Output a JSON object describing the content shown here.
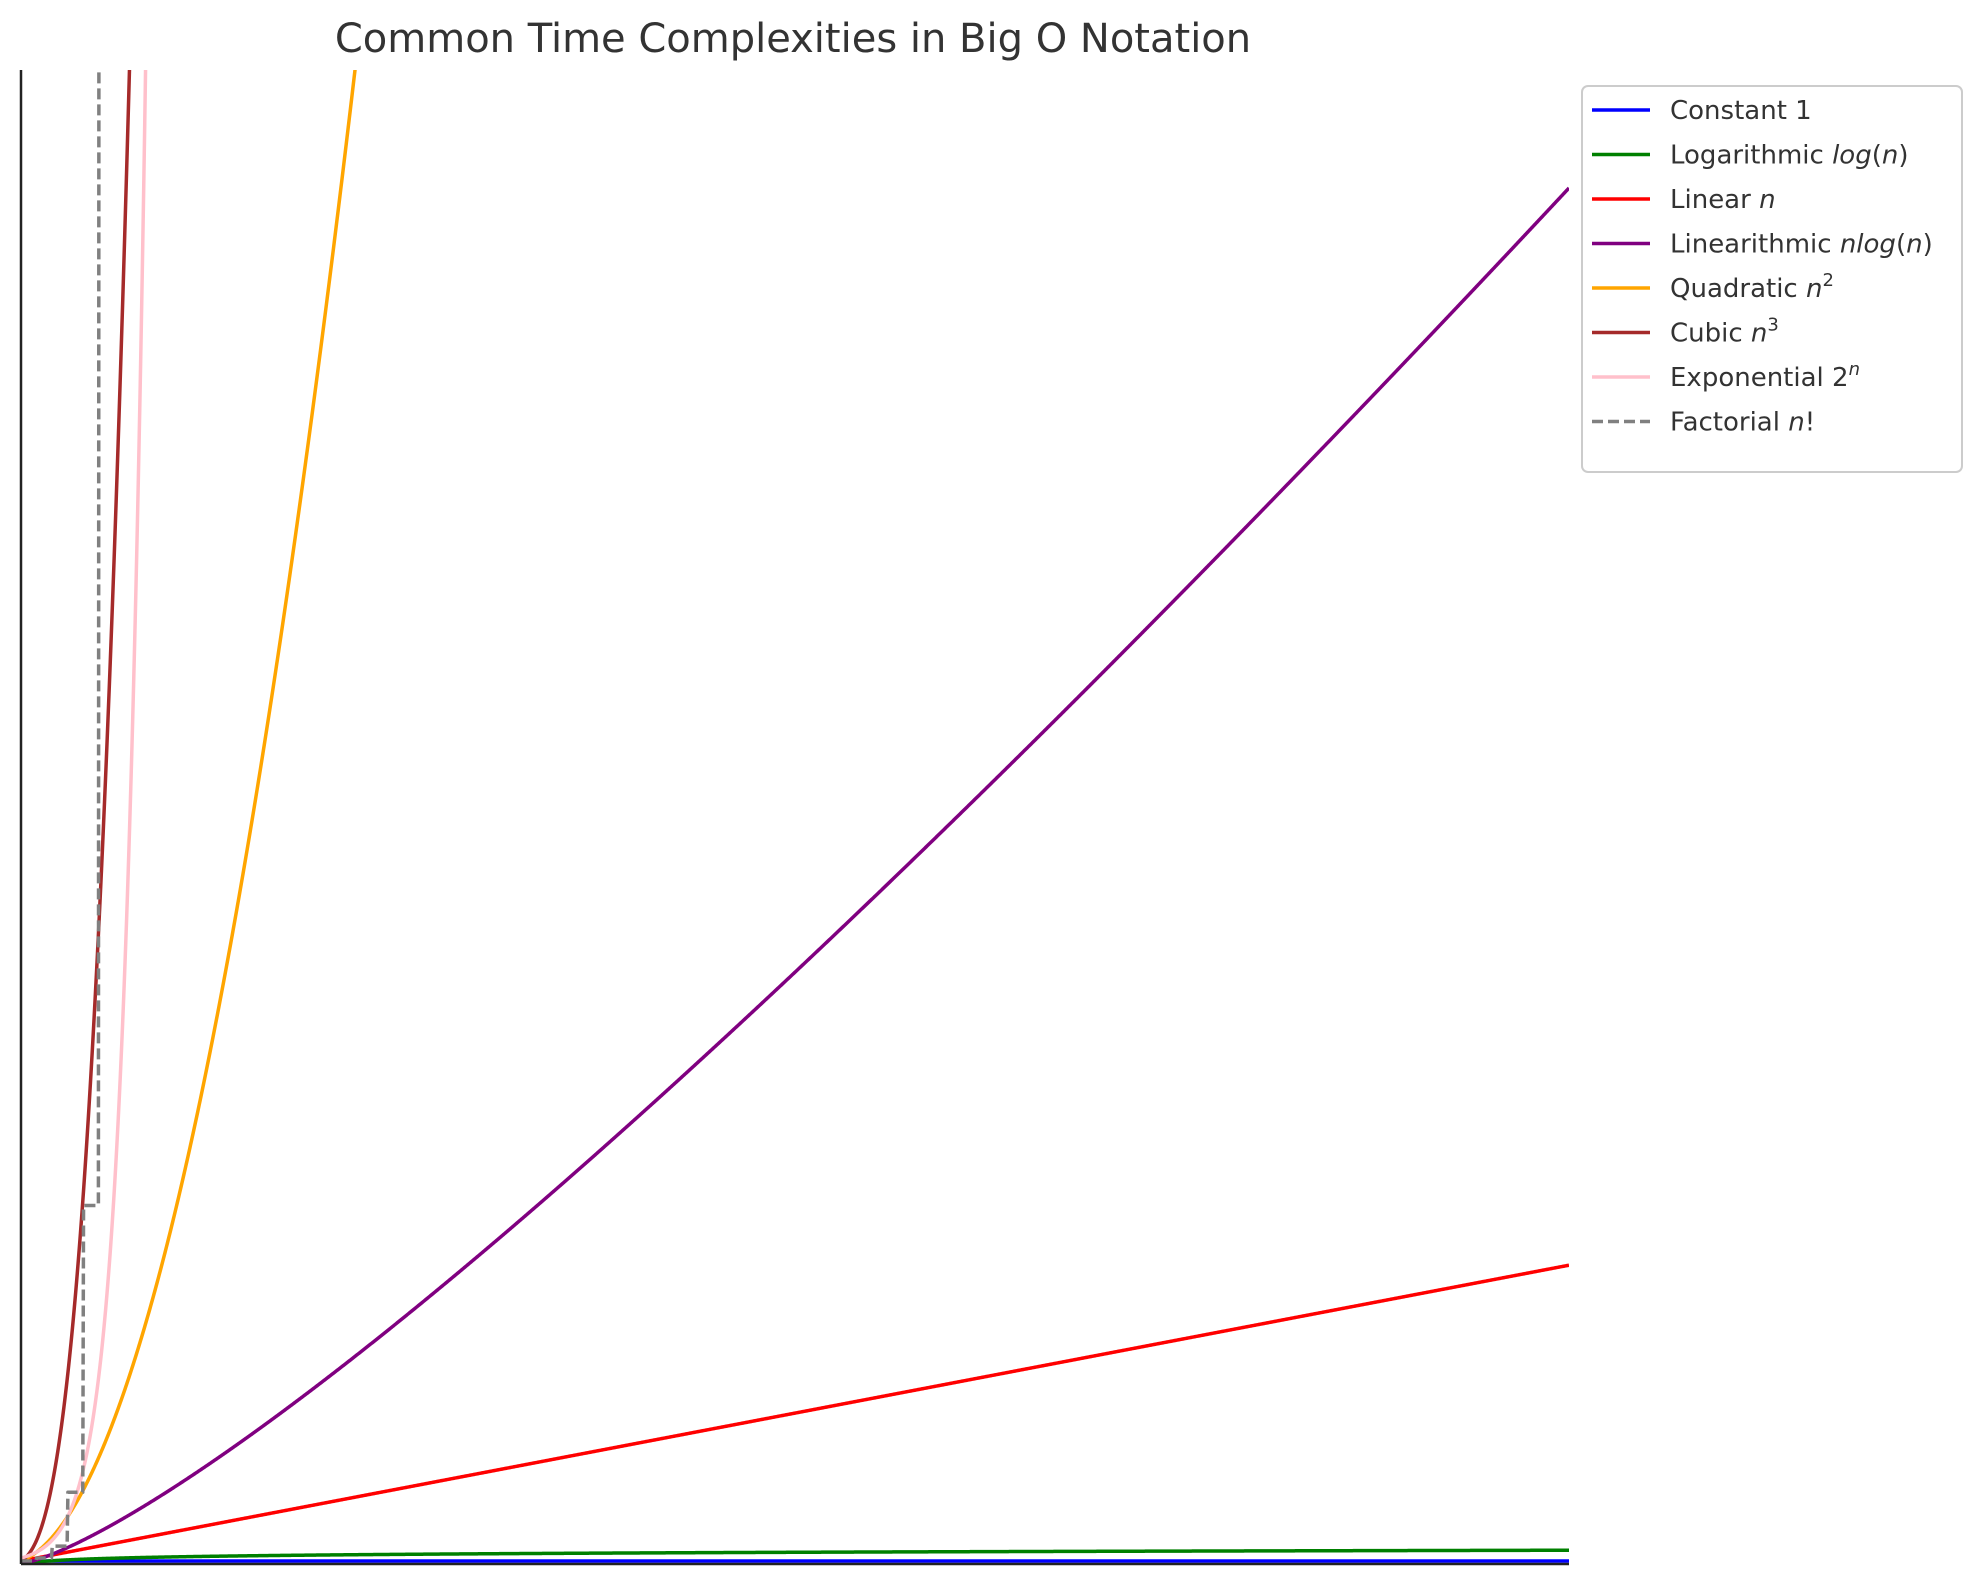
{
  "chart_data": {
    "type": "line",
    "title": "Common Time Complexities in Big O Notation",
    "xlabel": "",
    "ylabel": "",
    "xlim": [
      1,
      100
    ],
    "ylim": [
      0,
      500
    ],
    "grid": false,
    "legend_position": "top-right",
    "x_ticks": [],
    "y_ticks": [],
    "series": [
      {
        "name": "Constant 1",
        "label_parts": [
          {
            "text": "Constant 1"
          }
        ],
        "color": "#0000ff",
        "dash": "solid",
        "function": "constant",
        "points": [
          [
            1,
            1
          ],
          [
            100,
            1
          ]
        ]
      },
      {
        "name": "Logarithmic log(n)",
        "label_parts": [
          {
            "text": "Logarithmic "
          },
          {
            "text": "log",
            "italic": true
          },
          {
            "text": "("
          },
          {
            "text": "n",
            "italic": true
          },
          {
            "text": ")"
          }
        ],
        "color": "#008000",
        "dash": "solid",
        "function": "log",
        "points": [
          [
            1,
            0
          ],
          [
            10,
            2.3
          ],
          [
            25,
            3.2
          ],
          [
            50,
            3.9
          ],
          [
            75,
            4.3
          ],
          [
            100,
            4.6
          ]
        ]
      },
      {
        "name": "Linear n",
        "label_parts": [
          {
            "text": "Linear "
          },
          {
            "text": "n",
            "italic": true
          }
        ],
        "color": "#ff0000",
        "dash": "solid",
        "function": "linear",
        "points": [
          [
            1,
            1
          ],
          [
            25,
            25
          ],
          [
            50,
            50
          ],
          [
            75,
            75
          ],
          [
            100,
            100
          ]
        ]
      },
      {
        "name": "Linearithmic nlog(n)",
        "label_parts": [
          {
            "text": "Linearithmic "
          },
          {
            "text": "nlog",
            "italic": true
          },
          {
            "text": "("
          },
          {
            "text": "n",
            "italic": true
          },
          {
            "text": ")"
          }
        ],
        "color": "#800080",
        "dash": "solid",
        "function": "nlogn",
        "points": [
          [
            1,
            0
          ],
          [
            10,
            23
          ],
          [
            25,
            80
          ],
          [
            50,
            196
          ],
          [
            75,
            324
          ],
          [
            100,
            461
          ]
        ]
      },
      {
        "name": "Quadratic n^2",
        "label_parts": [
          {
            "text": "Quadratic "
          },
          {
            "text": "n",
            "italic": true
          },
          {
            "text": "2",
            "sup": true
          }
        ],
        "color": "#ffa500",
        "dash": "solid",
        "function": "quadratic",
        "points": [
          [
            1,
            1
          ],
          [
            5,
            25
          ],
          [
            10,
            100
          ],
          [
            15,
            225
          ],
          [
            20,
            400
          ],
          [
            22,
            484
          ]
        ]
      },
      {
        "name": "Cubic n^3",
        "label_parts": [
          {
            "text": "Cubic "
          },
          {
            "text": "n",
            "italic": true
          },
          {
            "text": "3",
            "sup": true
          }
        ],
        "color": "#a52a2a",
        "dash": "solid",
        "function": "cubic",
        "points": [
          [
            1,
            1
          ],
          [
            3,
            27
          ],
          [
            5,
            125
          ],
          [
            7,
            343
          ],
          [
            8,
            512
          ]
        ]
      },
      {
        "name": "Exponential 2^n",
        "label_parts": [
          {
            "text": "Exponential "
          },
          {
            "text": "2"
          },
          {
            "text": "n",
            "sup": true,
            "italic": true
          }
        ],
        "color": "#ffc0cb",
        "dash": "solid",
        "function": "exponential",
        "points": [
          [
            1,
            2
          ],
          [
            4,
            16
          ],
          [
            6,
            64
          ],
          [
            8,
            256
          ],
          [
            9,
            512
          ]
        ]
      },
      {
        "name": "Factorial n!",
        "label_parts": [
          {
            "text": "Factorial "
          },
          {
            "text": "n",
            "italic": true
          },
          {
            "text": "!"
          }
        ],
        "color": "#808080",
        "dash": "dashed",
        "function": "factorial",
        "points": [
          [
            1,
            1
          ],
          [
            2,
            2
          ],
          [
            3,
            6
          ],
          [
            4,
            24
          ],
          [
            5,
            120
          ],
          [
            6,
            720
          ]
        ]
      }
    ]
  }
}
